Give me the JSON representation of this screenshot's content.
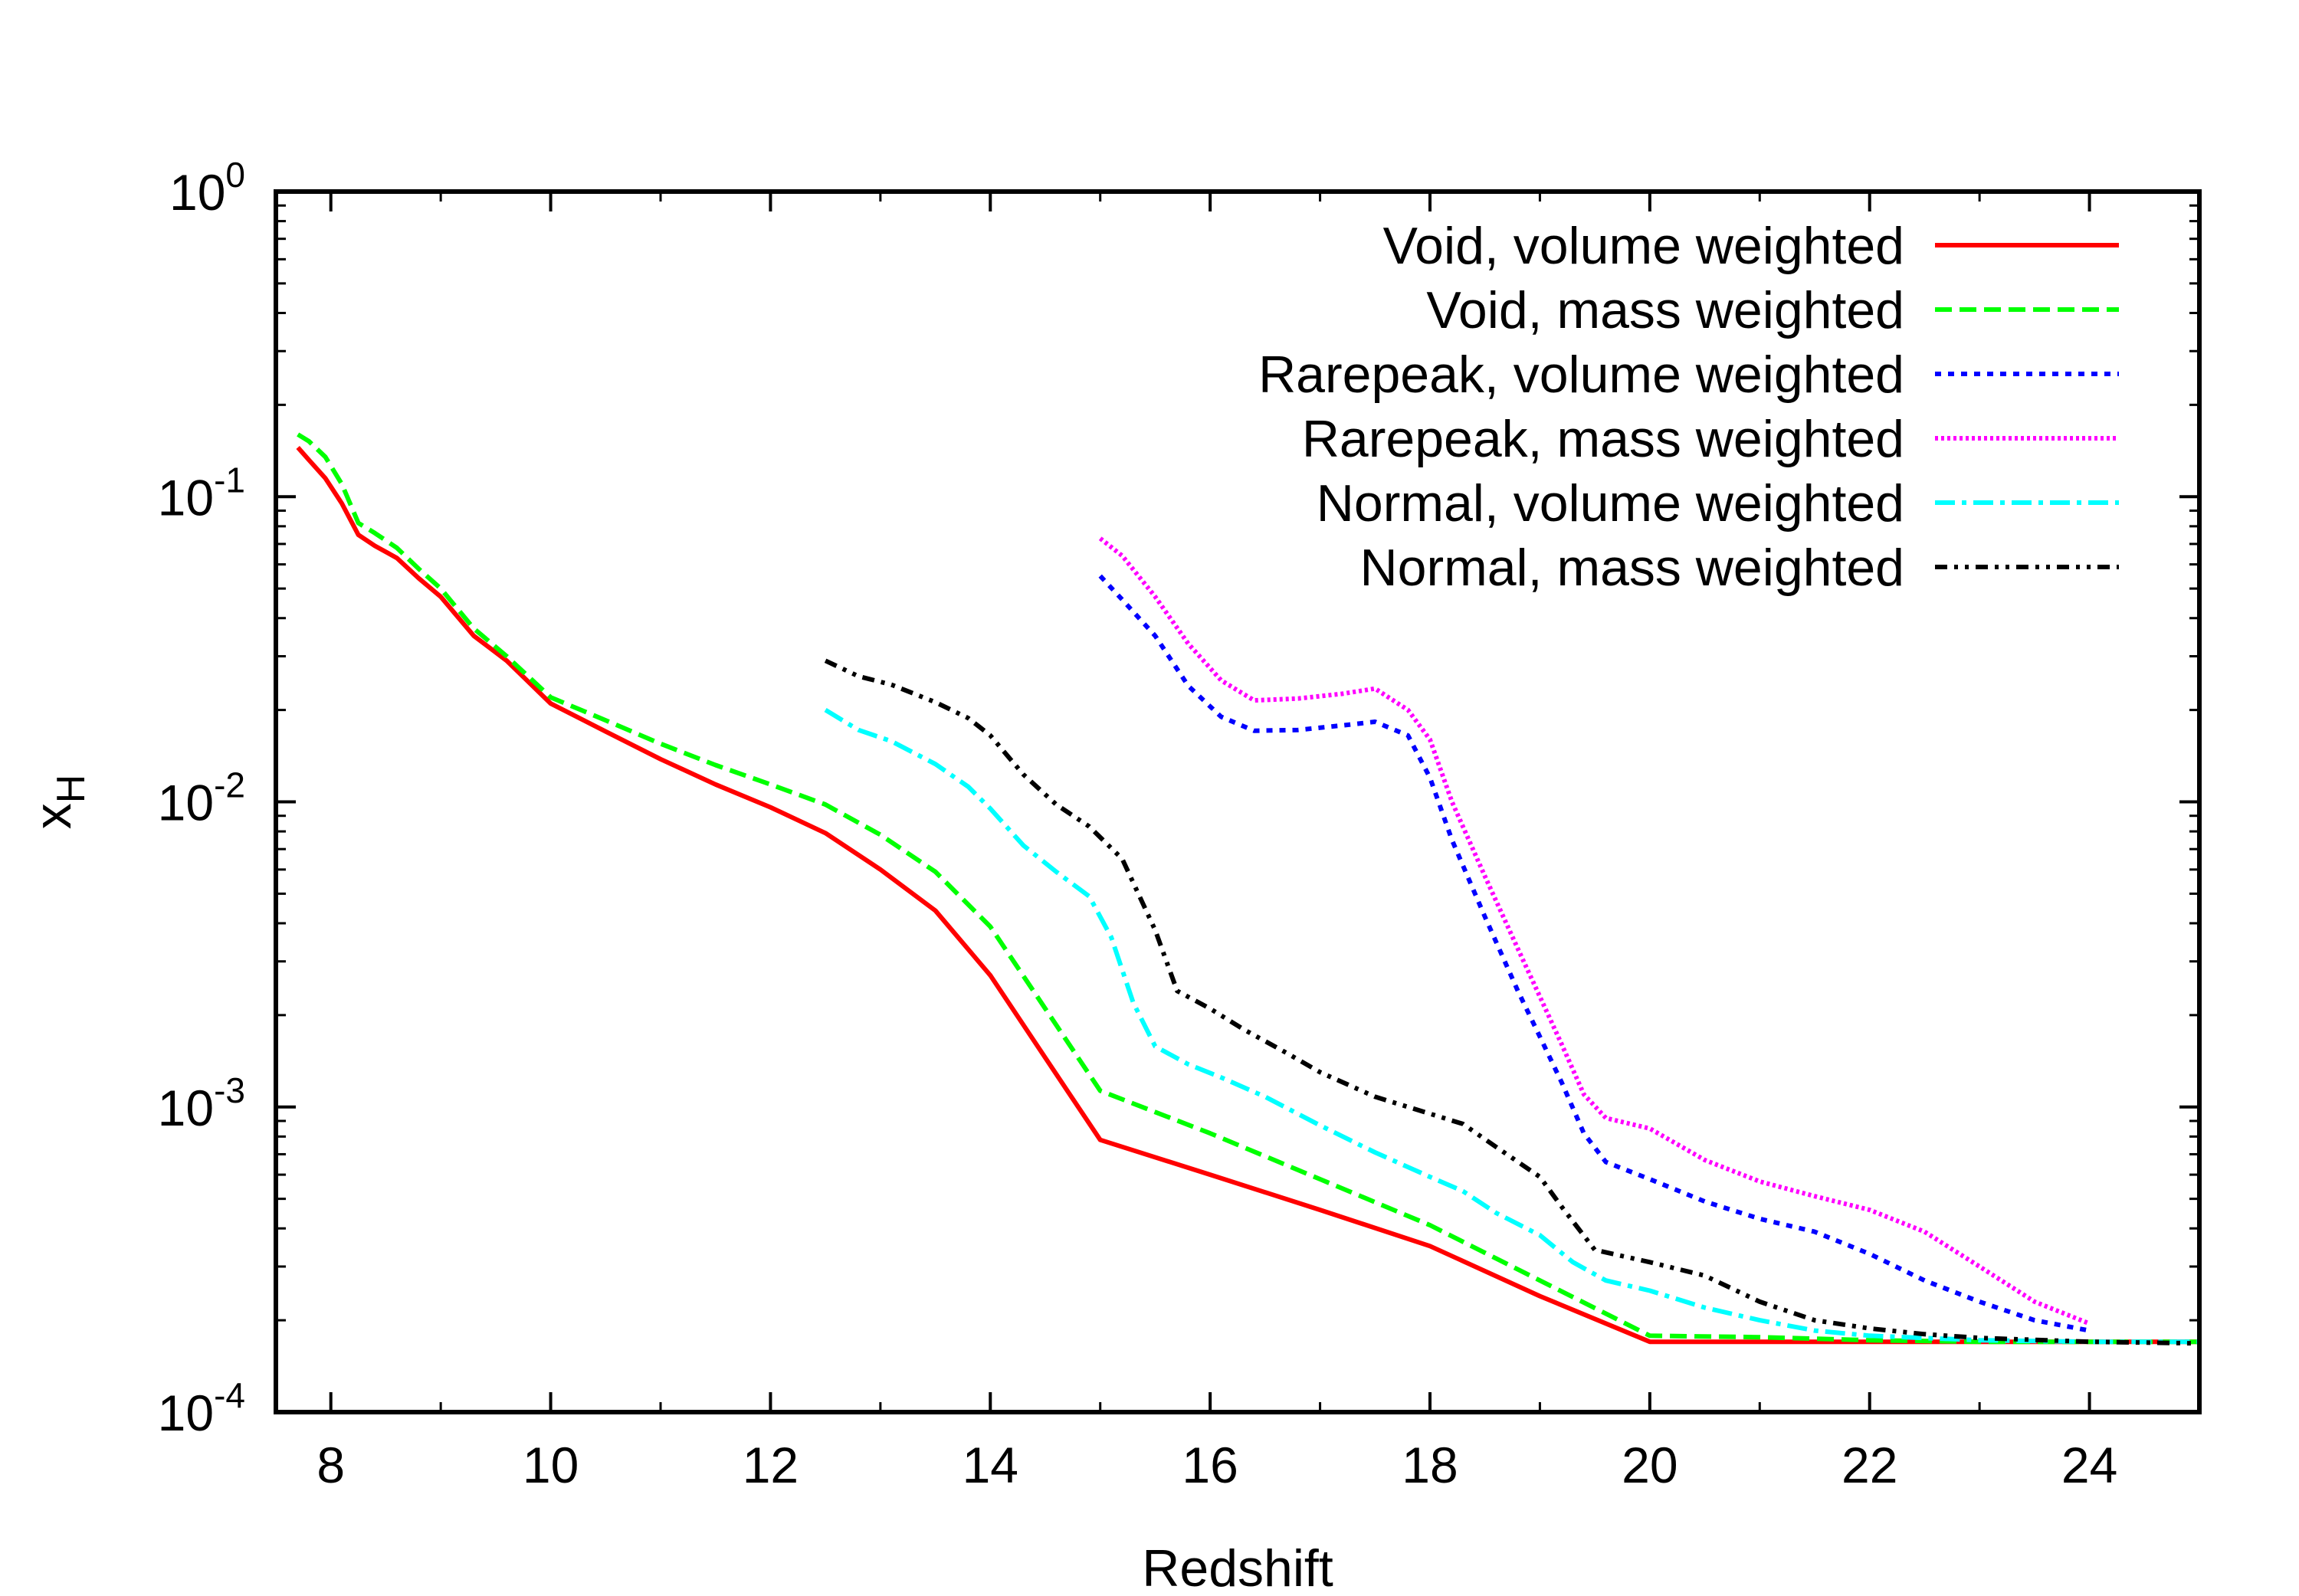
{
  "chart_data": {
    "type": "line",
    "title": "",
    "xlabel": "Redshift",
    "ylabel": "x",
    "ylabel_subscript": "H",
    "xlim": [
      7.5,
      25
    ],
    "ylim": [
      0.0001,
      1
    ],
    "yscale": "log",
    "grid": false,
    "legend_position": "top-right",
    "xticks": [
      8,
      10,
      12,
      14,
      16,
      18,
      20,
      22,
      24
    ],
    "yticks": [
      {
        "value": 0.0001,
        "base": "10",
        "exp": "-4"
      },
      {
        "value": 0.001,
        "base": "10",
        "exp": "-3"
      },
      {
        "value": 0.01,
        "base": "10",
        "exp": "-2"
      },
      {
        "value": 0.1,
        "base": "10",
        "exp": "-1"
      },
      {
        "value": 1,
        "base": "10",
        "exp": "0"
      }
    ],
    "series": [
      {
        "name": "Void, volume weighted",
        "color": "#ff0000",
        "dash": "solid",
        "points": [
          [
            7.7,
            0.145
          ],
          [
            7.8,
            0.132
          ],
          [
            7.95,
            0.115
          ],
          [
            8.1,
            0.095
          ],
          [
            8.25,
            0.075
          ],
          [
            8.4,
            0.069
          ],
          [
            8.6,
            0.063
          ],
          [
            8.8,
            0.054
          ],
          [
            9.0,
            0.047
          ],
          [
            9.3,
            0.035
          ],
          [
            9.6,
            0.029
          ],
          [
            10.0,
            0.021
          ],
          [
            10.5,
            0.017
          ],
          [
            11.0,
            0.0138
          ],
          [
            11.5,
            0.0114
          ],
          [
            12.0,
            0.0096
          ],
          [
            12.5,
            0.0079
          ],
          [
            13.0,
            0.006
          ],
          [
            13.5,
            0.0044
          ],
          [
            14.0,
            0.0027
          ],
          [
            14.5,
            0.00145
          ],
          [
            15.0,
            0.00078
          ],
          [
            16.0,
            0.0006
          ],
          [
            17.0,
            0.00046
          ],
          [
            18.0,
            0.00035
          ],
          [
            19.0,
            0.00024
          ],
          [
            20.0,
            0.00017
          ],
          [
            21.0,
            0.00017
          ],
          [
            22.0,
            0.00017
          ],
          [
            23.0,
            0.00017
          ],
          [
            24.0,
            0.00017
          ],
          [
            25.0,
            0.00017
          ]
        ]
      },
      {
        "name": "Void, mass weighted",
        "color": "#00ff00",
        "dash": "dashed",
        "points": [
          [
            7.7,
            0.16
          ],
          [
            7.8,
            0.152
          ],
          [
            7.95,
            0.135
          ],
          [
            8.1,
            0.11
          ],
          [
            8.25,
            0.082
          ],
          [
            8.4,
            0.076
          ],
          [
            8.6,
            0.068
          ],
          [
            8.8,
            0.058
          ],
          [
            9.0,
            0.05
          ],
          [
            9.3,
            0.037
          ],
          [
            9.6,
            0.03
          ],
          [
            10.0,
            0.022
          ],
          [
            10.5,
            0.0185
          ],
          [
            11.0,
            0.0155
          ],
          [
            11.5,
            0.0132
          ],
          [
            12.0,
            0.0114
          ],
          [
            12.5,
            0.0098
          ],
          [
            13.0,
            0.0078
          ],
          [
            13.5,
            0.0059
          ],
          [
            14.0,
            0.0039
          ],
          [
            14.5,
            0.0021
          ],
          [
            15.0,
            0.00113
          ],
          [
            16.0,
            0.00082
          ],
          [
            17.0,
            0.00058
          ],
          [
            18.0,
            0.00041
          ],
          [
            19.0,
            0.00027
          ],
          [
            20.0,
            0.000178
          ],
          [
            21.0,
            0.000176
          ],
          [
            22.0,
            0.000172
          ],
          [
            23.0,
            0.00017
          ],
          [
            24.0,
            0.00017
          ],
          [
            25.0,
            0.00017
          ]
        ]
      },
      {
        "name": "Rarepeak, volume weighted",
        "color": "#0000ff",
        "dash": "dotted",
        "points": [
          [
            15.0,
            0.055
          ],
          [
            15.2,
            0.046
          ],
          [
            15.5,
            0.035
          ],
          [
            15.8,
            0.024
          ],
          [
            16.1,
            0.019
          ],
          [
            16.4,
            0.0171
          ],
          [
            16.8,
            0.0172
          ],
          [
            17.2,
            0.0178
          ],
          [
            17.5,
            0.0183
          ],
          [
            17.8,
            0.0165
          ],
          [
            18.0,
            0.012
          ],
          [
            18.2,
            0.0075
          ],
          [
            18.5,
            0.0042
          ],
          [
            18.8,
            0.0024
          ],
          [
            19.0,
            0.0017
          ],
          [
            19.2,
            0.0012
          ],
          [
            19.4,
            0.00082
          ],
          [
            19.6,
            0.00066
          ],
          [
            20.0,
            0.00058
          ],
          [
            20.5,
            0.00049
          ],
          [
            21.0,
            0.00043
          ],
          [
            21.5,
            0.00039
          ],
          [
            22.0,
            0.00033
          ],
          [
            22.5,
            0.00027
          ],
          [
            23.0,
            0.00023
          ],
          [
            23.5,
            0.0002
          ],
          [
            24.0,
            0.000185
          ]
        ]
      },
      {
        "name": "Rarepeak, mass weighted",
        "color": "#ff00ff",
        "dash": "dense-dotted",
        "points": [
          [
            15.0,
            0.073
          ],
          [
            15.2,
            0.064
          ],
          [
            15.5,
            0.047
          ],
          [
            15.8,
            0.033
          ],
          [
            16.1,
            0.025
          ],
          [
            16.4,
            0.0215
          ],
          [
            16.8,
            0.0218
          ],
          [
            17.2,
            0.0226
          ],
          [
            17.5,
            0.0235
          ],
          [
            17.8,
            0.02
          ],
          [
            18.0,
            0.016
          ],
          [
            18.2,
            0.01
          ],
          [
            18.5,
            0.0057
          ],
          [
            18.8,
            0.0033
          ],
          [
            19.0,
            0.0023
          ],
          [
            19.2,
            0.0016
          ],
          [
            19.4,
            0.0011
          ],
          [
            19.6,
            0.00092
          ],
          [
            20.0,
            0.00085
          ],
          [
            20.5,
            0.00067
          ],
          [
            21.0,
            0.00057
          ],
          [
            21.5,
            0.00051
          ],
          [
            22.0,
            0.00046
          ],
          [
            22.5,
            0.00039
          ],
          [
            23.0,
            0.0003
          ],
          [
            23.5,
            0.00023
          ],
          [
            24.0,
            0.000195
          ]
        ]
      },
      {
        "name": "Normal, volume weighted",
        "color": "#00ffff",
        "dash": "dash-dot",
        "points": [
          [
            12.5,
            0.02
          ],
          [
            12.8,
            0.0172
          ],
          [
            13.1,
            0.0158
          ],
          [
            13.5,
            0.0133
          ],
          [
            13.8,
            0.0112
          ],
          [
            14.0,
            0.0095
          ],
          [
            14.3,
            0.0072
          ],
          [
            14.6,
            0.0059
          ],
          [
            14.9,
            0.0049
          ],
          [
            15.1,
            0.0036
          ],
          [
            15.3,
            0.0022
          ],
          [
            15.5,
            0.00158
          ],
          [
            15.8,
            0.00138
          ],
          [
            16.1,
            0.00125
          ],
          [
            16.5,
            0.00108
          ],
          [
            17.0,
            0.00087
          ],
          [
            17.5,
            0.00071
          ],
          [
            18.0,
            0.00059
          ],
          [
            18.3,
            0.00053
          ],
          [
            18.6,
            0.00045
          ],
          [
            19.0,
            0.00038
          ],
          [
            19.3,
            0.00031
          ],
          [
            19.6,
            0.00027
          ],
          [
            20.0,
            0.00025
          ],
          [
            20.5,
            0.00022
          ],
          [
            21.0,
            0.0002
          ],
          [
            21.5,
            0.000185
          ],
          [
            22.0,
            0.000178
          ],
          [
            23.0,
            0.000172
          ],
          [
            24.0,
            0.00017
          ],
          [
            25.0,
            0.00017
          ]
        ]
      },
      {
        "name": "Normal, mass weighted",
        "color": "#000000",
        "dash": "dash-dot-dot",
        "points": [
          [
            12.5,
            0.029
          ],
          [
            12.8,
            0.0258
          ],
          [
            13.1,
            0.0242
          ],
          [
            13.5,
            0.0212
          ],
          [
            13.8,
            0.0188
          ],
          [
            14.0,
            0.0165
          ],
          [
            14.3,
            0.0123
          ],
          [
            14.6,
            0.0098
          ],
          [
            14.9,
            0.0083
          ],
          [
            15.2,
            0.0065
          ],
          [
            15.5,
            0.0038
          ],
          [
            15.7,
            0.0024
          ],
          [
            16.0,
            0.0021
          ],
          [
            16.3,
            0.0018
          ],
          [
            16.7,
            0.0015
          ],
          [
            17.0,
            0.0013
          ],
          [
            17.5,
            0.00108
          ],
          [
            18.0,
            0.00095
          ],
          [
            18.3,
            0.00088
          ],
          [
            18.6,
            0.00074
          ],
          [
            19.0,
            0.00059
          ],
          [
            19.2,
            0.00047
          ],
          [
            19.5,
            0.00034
          ],
          [
            20.0,
            0.00031
          ],
          [
            20.5,
            0.00028
          ],
          [
            21.0,
            0.00023
          ],
          [
            21.5,
            0.0002
          ],
          [
            22.0,
            0.000188
          ],
          [
            22.5,
            0.00018
          ],
          [
            23.0,
            0.000175
          ],
          [
            24.0,
            0.00017
          ],
          [
            25.0,
            0.000168
          ]
        ]
      }
    ]
  }
}
